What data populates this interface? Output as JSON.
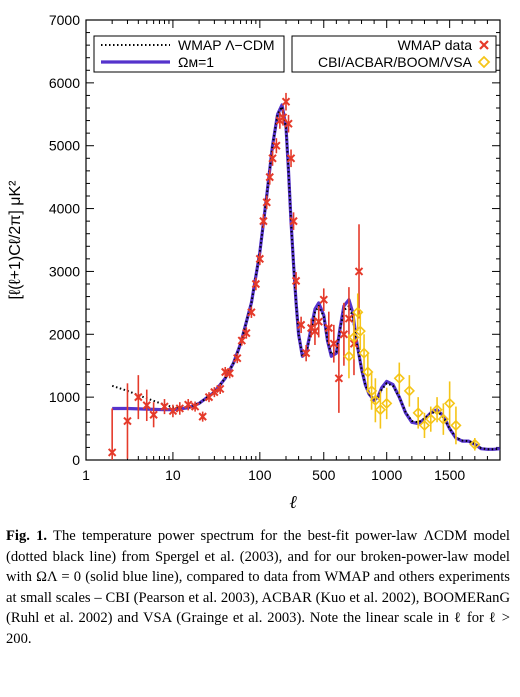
{
  "chart_data": {
    "type": "line",
    "xlabel": "ℓ",
    "ylabel": "[ℓ(ℓ+1)Cℓ/2π]  μK²",
    "x_scale": "log for ℓ ≤ 200, linear for ℓ > 200",
    "xlim": [
      1,
      1900
    ],
    "ylim": [
      0,
      7000
    ],
    "x_ticks": [
      1,
      10,
      100,
      500,
      1000,
      1500
    ],
    "x_tick_labels": [
      "1",
      "10",
      "100",
      "500",
      "1000",
      "1500"
    ],
    "y_ticks": [
      0,
      1000,
      2000,
      3000,
      4000,
      5000,
      6000,
      7000
    ],
    "y_tick_labels": [
      "0",
      "1000",
      "2000",
      "3000",
      "4000",
      "5000",
      "6000",
      "7000"
    ],
    "legend_left": [
      {
        "label": "WMAP Λ−CDM",
        "style": "dotted",
        "color": "#000000"
      },
      {
        "label": "Ωᴍ=1",
        "style": "solid",
        "color": "#5533cc"
      }
    ],
    "legend_right": [
      {
        "label": "WMAP data",
        "marker": "x",
        "color": "#e53a2a"
      },
      {
        "label": "CBI/ACBAR/BOOM/VSA",
        "marker": "diamond",
        "color": "#f5c518"
      }
    ],
    "series": [
      {
        "name": "Ωᴍ=1",
        "style": "solid",
        "color": "#5533cc",
        "x": [
          2,
          3,
          5,
          8,
          10,
          15,
          20,
          30,
          40,
          50,
          60,
          80,
          100,
          120,
          140,
          160,
          180,
          200,
          220,
          240,
          260,
          280,
          300,
          330,
          360,
          400,
          430,
          460,
          500,
          530,
          560,
          600,
          630,
          660,
          700,
          730,
          760,
          800,
          830,
          860,
          900,
          930,
          960,
          1000,
          1050,
          1100,
          1150,
          1200,
          1250,
          1300,
          1350,
          1400,
          1450,
          1500,
          1550,
          1600,
          1650,
          1700,
          1750,
          1800,
          1850,
          1900
        ],
        "y": [
          820,
          820,
          810,
          800,
          800,
          830,
          900,
          1080,
          1300,
          1550,
          1850,
          2500,
          3300,
          4200,
          5000,
          5500,
          5650,
          5300,
          4600,
          3800,
          3100,
          2500,
          2000,
          1650,
          1700,
          2100,
          2400,
          2500,
          2300,
          1900,
          1650,
          1700,
          2100,
          2450,
          2550,
          2350,
          1900,
          1450,
          1200,
          1050,
          950,
          1000,
          1150,
          1250,
          1200,
          1000,
          750,
          600,
          580,
          650,
          750,
          800,
          700,
          500,
          350,
          300,
          300,
          250,
          180,
          170,
          170,
          180
        ]
      },
      {
        "name": "WMAP Λ−CDM",
        "style": "dotted",
        "color": "#000000",
        "x": [
          2,
          3,
          5,
          8,
          10,
          15,
          20,
          30,
          40,
          50,
          60,
          80,
          100,
          120,
          140,
          160,
          180,
          200,
          220,
          240,
          260,
          280,
          300,
          330,
          360,
          400,
          430,
          460,
          500,
          530,
          560,
          600,
          630,
          660,
          700,
          730,
          760,
          800,
          830,
          860,
          900,
          930,
          960,
          1000,
          1050,
          1100,
          1150,
          1200,
          1250,
          1300,
          1350,
          1400,
          1450,
          1500,
          1550,
          1600,
          1650,
          1700,
          1750,
          1800,
          1850,
          1900
        ],
        "y": [
          1180,
          1100,
          980,
          880,
          840,
          840,
          900,
          1080,
          1300,
          1550,
          1850,
          2500,
          3300,
          4200,
          5000,
          5500,
          5620,
          5280,
          4600,
          3800,
          3100,
          2500,
          2000,
          1650,
          1680,
          2050,
          2350,
          2450,
          2280,
          1900,
          1680,
          1720,
          2080,
          2380,
          2450,
          2280,
          1880,
          1450,
          1200,
          1050,
          950,
          1000,
          1120,
          1220,
          1180,
          1000,
          760,
          620,
          600,
          660,
          740,
          780,
          680,
          500,
          360,
          310,
          300,
          260,
          190,
          170,
          170,
          180
        ]
      },
      {
        "name": "WMAP data",
        "marker": "x",
        "color": "#e53a2a",
        "points": [
          {
            "x": 2,
            "y": 120,
            "err": 700
          },
          {
            "x": 3,
            "y": 620,
            "err": 600
          },
          {
            "x": 4,
            "y": 1000,
            "err": 350
          },
          {
            "x": 5,
            "y": 870,
            "err": 250
          },
          {
            "x": 6,
            "y": 720,
            "err": 200
          },
          {
            "x": 8,
            "y": 850,
            "err": 120
          },
          {
            "x": 10,
            "y": 780,
            "err": 100
          },
          {
            "x": 12,
            "y": 820,
            "err": 100
          },
          {
            "x": 15,
            "y": 880,
            "err": 90
          },
          {
            "x": 18,
            "y": 850,
            "err": 80
          },
          {
            "x": 22,
            "y": 690,
            "err": 80
          },
          {
            "x": 26,
            "y": 1000,
            "err": 80
          },
          {
            "x": 30,
            "y": 1080,
            "err": 80
          },
          {
            "x": 35,
            "y": 1130,
            "err": 80
          },
          {
            "x": 40,
            "y": 1400,
            "err": 80
          },
          {
            "x": 45,
            "y": 1380,
            "err": 80
          },
          {
            "x": 55,
            "y": 1620,
            "err": 80
          },
          {
            "x": 62,
            "y": 1900,
            "err": 80
          },
          {
            "x": 70,
            "y": 2020,
            "err": 90
          },
          {
            "x": 80,
            "y": 2350,
            "err": 90
          },
          {
            "x": 90,
            "y": 2800,
            "err": 100
          },
          {
            "x": 100,
            "y": 3200,
            "err": 100
          },
          {
            "x": 110,
            "y": 3800,
            "err": 110
          },
          {
            "x": 120,
            "y": 4100,
            "err": 110
          },
          {
            "x": 130,
            "y": 4500,
            "err": 120
          },
          {
            "x": 140,
            "y": 4800,
            "err": 120
          },
          {
            "x": 155,
            "y": 5000,
            "err": 120
          },
          {
            "x": 170,
            "y": 5400,
            "err": 130
          },
          {
            "x": 185,
            "y": 5450,
            "err": 130
          },
          {
            "x": 200,
            "y": 5700,
            "err": 140
          },
          {
            "x": 220,
            "y": 5350,
            "err": 140
          },
          {
            "x": 240,
            "y": 4800,
            "err": 140
          },
          {
            "x": 260,
            "y": 3800,
            "err": 140
          },
          {
            "x": 280,
            "y": 2850,
            "err": 140
          },
          {
            "x": 320,
            "y": 2150,
            "err": 130
          },
          {
            "x": 360,
            "y": 1700,
            "err": 130
          },
          {
            "x": 400,
            "y": 2100,
            "err": 150
          },
          {
            "x": 430,
            "y": 2050,
            "err": 220
          },
          {
            "x": 460,
            "y": 2200,
            "err": 250
          },
          {
            "x": 500,
            "y": 2550,
            "err": 180
          },
          {
            "x": 540,
            "y": 2100,
            "err": 260
          },
          {
            "x": 580,
            "y": 1850,
            "err": 300
          },
          {
            "x": 620,
            "y": 1300,
            "err": 550
          },
          {
            "x": 660,
            "y": 2000,
            "err": 500
          },
          {
            "x": 700,
            "y": 2250,
            "err": 500
          },
          {
            "x": 740,
            "y": 1850,
            "err": 500
          },
          {
            "x": 780,
            "y": 3000,
            "err": 750
          }
        ]
      },
      {
        "name": "CBI/ACBAR/BOOM/VSA",
        "marker": "diamond",
        "color": "#f5c518",
        "points": [
          {
            "x": 700,
            "y": 1650,
            "err": 350
          },
          {
            "x": 740,
            "y": 1950,
            "err": 350
          },
          {
            "x": 770,
            "y": 2350,
            "err": 300
          },
          {
            "x": 790,
            "y": 2050,
            "err": 300
          },
          {
            "x": 820,
            "y": 1700,
            "err": 300
          },
          {
            "x": 850,
            "y": 1400,
            "err": 300
          },
          {
            "x": 880,
            "y": 1100,
            "err": 300
          },
          {
            "x": 910,
            "y": 950,
            "err": 350
          },
          {
            "x": 950,
            "y": 800,
            "err": 300
          },
          {
            "x": 1000,
            "y": 900,
            "err": 250
          },
          {
            "x": 1100,
            "y": 1300,
            "err": 250
          },
          {
            "x": 1180,
            "y": 1100,
            "err": 250
          },
          {
            "x": 1250,
            "y": 750,
            "err": 250
          },
          {
            "x": 1300,
            "y": 550,
            "err": 200
          },
          {
            "x": 1350,
            "y": 650,
            "err": 200
          },
          {
            "x": 1400,
            "y": 800,
            "err": 200
          },
          {
            "x": 1450,
            "y": 650,
            "err": 250
          },
          {
            "x": 1500,
            "y": 900,
            "err": 350
          },
          {
            "x": 1550,
            "y": 550,
            "err": 300
          },
          {
            "x": 1700,
            "y": 250,
            "err": 100
          }
        ]
      }
    ]
  },
  "caption": {
    "label": "Fig. 1.",
    "text": "  The temperature power spectrum for the best-fit power-law ΛCDM model (dotted black line) from Spergel et al. (2003), and for our broken-power-law model with ΩΛ = 0 (solid blue line), compared to data from WMAP and others experiments at small scales – CBI (Pearson et al. 2003), ACBAR (Kuo et al. 2002), BOOMERanG (Ruhl et al. 2002) and VSA (Grainge et al. 2003). Note the linear scale in ℓ for ℓ > 200."
  }
}
